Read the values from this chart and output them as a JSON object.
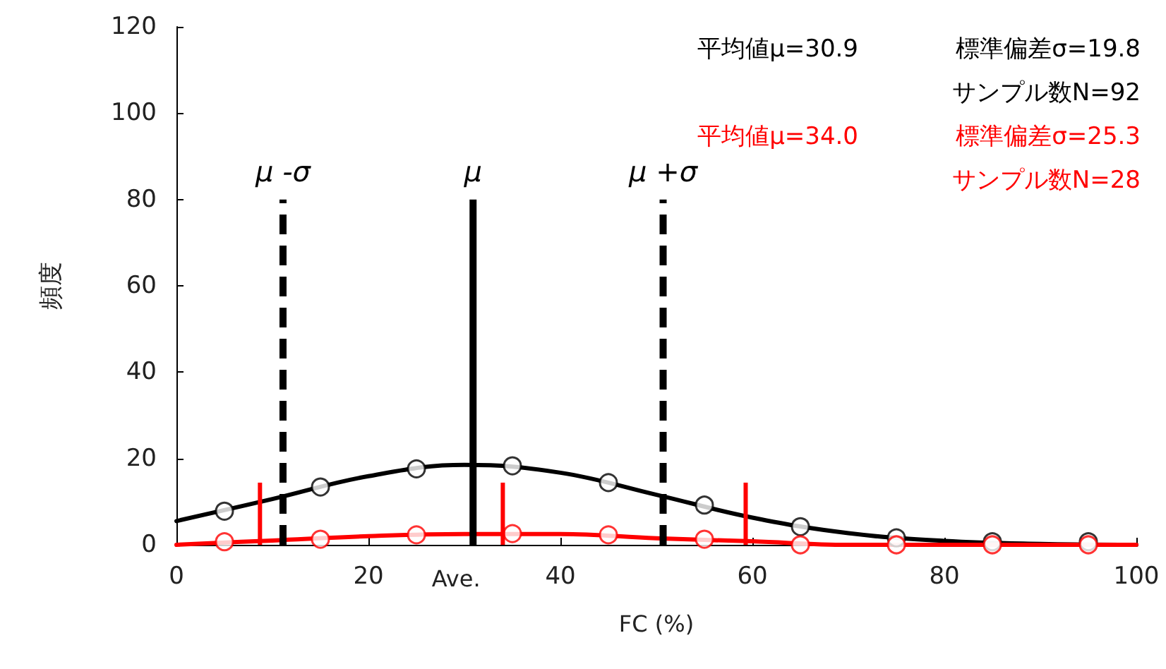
{
  "chart_data": {
    "type": "scatter",
    "xlabel": "FC (%)",
    "ylabel": "頻度",
    "xlim": [
      0,
      100
    ],
    "xticks": [
      0,
      20,
      40,
      60,
      80,
      100
    ],
    "ylim": [
      0,
      120
    ],
    "yticks": [
      0,
      20,
      40,
      60,
      80,
      100,
      120
    ],
    "grid": false,
    "marker": "circle",
    "series": [
      {
        "type": "line",
        "marker": "none",
        "color": "#000000",
        "x": [
          0,
          10,
          20,
          30,
          40,
          50,
          60,
          70,
          80,
          90,
          100
        ],
        "values": [
          5.5,
          10.6,
          15.9,
          18.5,
          16.7,
          11.6,
          6.3,
          2.7,
          0.9,
          0.2,
          0
        ]
      },
      {
        "type": "line",
        "marker": "none",
        "color": "#ff0000",
        "x": [
          0,
          10,
          20,
          30,
          40,
          50,
          60,
          70,
          80,
          90,
          100
        ],
        "values": [
          0,
          1,
          2,
          2.5,
          2.5,
          1.5,
          0.8,
          0,
          0,
          0,
          0
        ]
      },
      {
        "color": "#000000",
        "x": [
          5,
          15,
          25,
          35,
          45,
          55,
          65,
          75,
          85,
          95
        ],
        "values": [
          7.8,
          13.4,
          17.6,
          18.3,
          14.4,
          9.2,
          4.2,
          1.6,
          0.7,
          0.7
        ]
      },
      {
        "color": "#ff0000",
        "x": [
          5,
          15,
          25,
          35,
          45,
          55,
          65,
          75,
          85,
          95
        ],
        "values": [
          0.7,
          1.3,
          2.3,
          2.6,
          2.3,
          1.3,
          0,
          0,
          0,
          0
        ]
      }
    ],
    "ref_lines": [
      {
        "axis": "x",
        "value": 11.1,
        "label": "μ -σ",
        "color": "#000000",
        "line_style": "dashed"
      },
      {
        "axis": "x",
        "value": 30.9,
        "label": "μ",
        "color": "#000000",
        "line_style": "solid"
      },
      {
        "axis": "x",
        "value": 50.7,
        "label": "μ +σ",
        "color": "#000000",
        "line_style": "dashed"
      },
      {
        "axis": "x",
        "value": 8.7,
        "color": "#ff0000",
        "line_style": "solid"
      },
      {
        "axis": "x",
        "value": 34.0,
        "color": "#ff0000",
        "line_style": "solid"
      },
      {
        "axis": "x",
        "value": 59.3,
        "color": "#ff0000",
        "line_style": "solid"
      }
    ],
    "annotations": [
      "平均値μ=30.9",
      "標準偏差σ=19.8",
      "サンプル数N=92",
      "平均値μ=34.0",
      "標準偏差σ=25.3",
      "サンプル数N=28",
      {
        "text": "Ave.",
        "x": 30.9,
        "y": 0
      }
    ]
  }
}
